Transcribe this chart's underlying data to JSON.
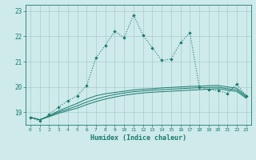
{
  "xlabel": "Humidex (Indice chaleur)",
  "x": [
    0,
    1,
    2,
    3,
    4,
    5,
    6,
    7,
    8,
    9,
    10,
    11,
    12,
    13,
    14,
    15,
    16,
    17,
    18,
    19,
    20,
    21,
    22,
    23
  ],
  "line1": [
    18.8,
    18.65,
    18.9,
    19.2,
    19.45,
    19.65,
    20.05,
    21.15,
    21.65,
    22.2,
    21.95,
    22.85,
    22.05,
    21.55,
    21.05,
    21.1,
    21.75,
    22.15,
    20.0,
    19.9,
    19.85,
    19.75,
    20.1,
    19.65
  ],
  "line2": [
    18.8,
    18.7,
    18.85,
    19.05,
    19.2,
    19.35,
    19.52,
    19.65,
    19.73,
    19.78,
    19.83,
    19.88,
    19.91,
    19.93,
    19.96,
    19.98,
    20.0,
    20.02,
    20.03,
    20.05,
    20.06,
    20.0,
    19.95,
    19.65
  ],
  "line3": [
    18.8,
    18.7,
    18.85,
    19.0,
    19.12,
    19.25,
    19.4,
    19.52,
    19.62,
    19.7,
    19.76,
    19.81,
    19.84,
    19.87,
    19.89,
    19.91,
    19.93,
    19.95,
    19.97,
    19.98,
    19.99,
    19.93,
    19.88,
    19.6
  ],
  "line4": [
    18.8,
    18.7,
    18.82,
    18.95,
    19.06,
    19.16,
    19.3,
    19.42,
    19.52,
    19.6,
    19.67,
    19.72,
    19.76,
    19.79,
    19.81,
    19.83,
    19.85,
    19.87,
    19.89,
    19.91,
    19.93,
    19.87,
    19.82,
    19.55
  ],
  "line_color": "#1a7a6e",
  "bg_color": "#ceeaea",
  "grid_color": "#aacccc",
  "ylim": [
    18.5,
    23.25
  ],
  "xlim": [
    -0.5,
    23.5
  ],
  "yticks": [
    19,
    20,
    21,
    22,
    23
  ],
  "xticks": [
    0,
    1,
    2,
    3,
    4,
    5,
    6,
    7,
    8,
    9,
    10,
    11,
    12,
    13,
    14,
    15,
    16,
    17,
    18,
    19,
    20,
    21,
    22,
    23
  ]
}
